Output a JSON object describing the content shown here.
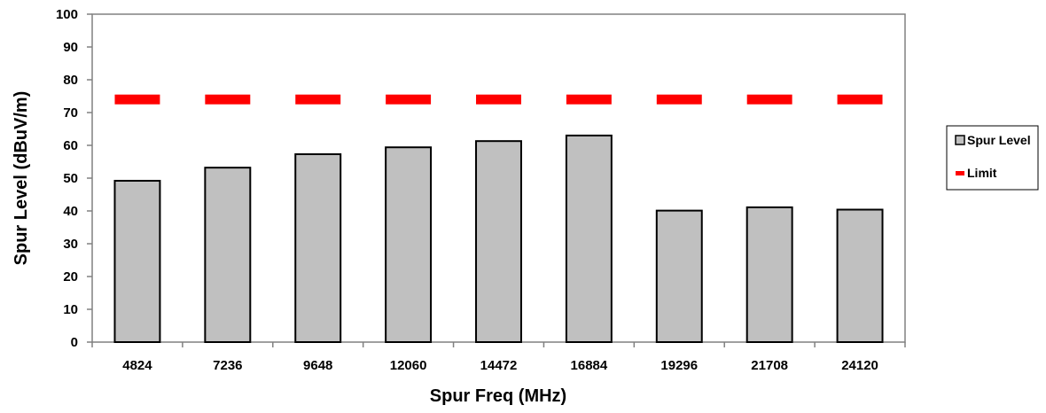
{
  "chart_data": {
    "type": "bar",
    "title": "",
    "xlabel": "Spur Freq (MHz)",
    "ylabel": "Spur Level (dBuV/m)",
    "ylim": [
      0,
      100
    ],
    "yticks": [
      0,
      10,
      20,
      30,
      40,
      50,
      60,
      70,
      80,
      90,
      100
    ],
    "categories": [
      "4824",
      "7236",
      "9648",
      "12060",
      "14472",
      "16884",
      "19296",
      "21708",
      "24120"
    ],
    "series": [
      {
        "name": "Spur Level",
        "kind": "bar",
        "color": "#c0c0c0",
        "values": [
          49.2,
          53.2,
          57.3,
          59.4,
          61.3,
          63.0,
          40.1,
          41.1,
          40.4
        ]
      },
      {
        "name": "Limit",
        "kind": "dash",
        "color": "#ff0000",
        "values": [
          74,
          74,
          74,
          74,
          74,
          74,
          74,
          74,
          74
        ]
      }
    ],
    "grid": false,
    "legend_position": "right"
  }
}
